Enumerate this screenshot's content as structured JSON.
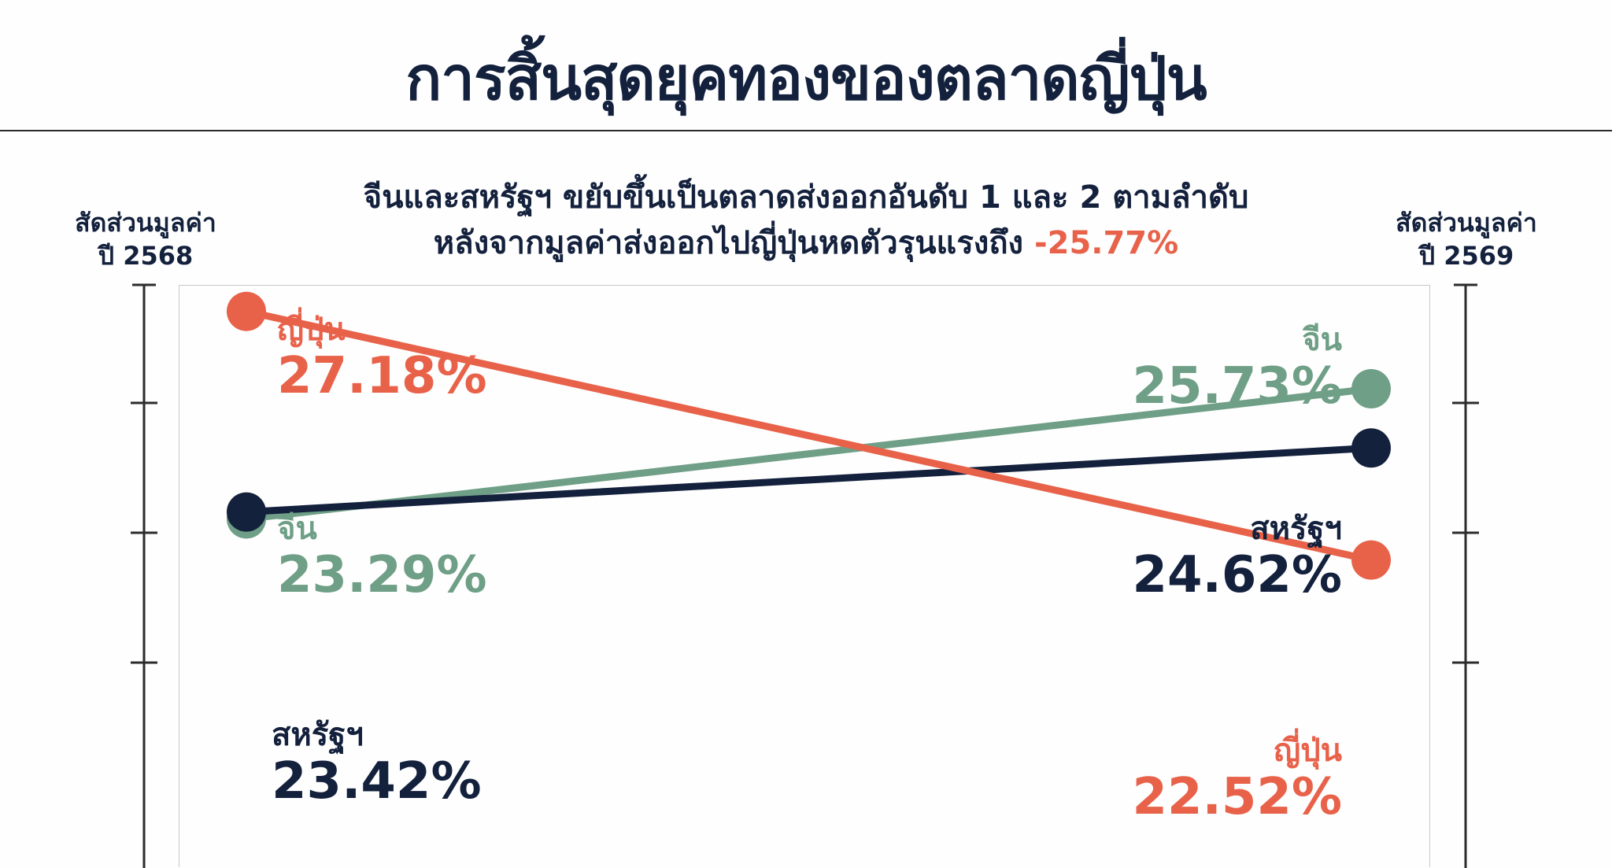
{
  "title": "การสิ้นสุดยุคทองของตลาดญี่ปุ่น",
  "subtitle": {
    "line1": "จีนและสหรัฐฯ ขยับขึ้นเป็นตลาดส่งออกอันดับ 1 และ 2 ตามลำดับ",
    "line2_prefix": "หลังจากมูลค่าส่งออกไปญี่ปุ่นหดตัวรุนแรงถึง ",
    "line2_highlight": "-25.77%"
  },
  "axis_left": {
    "line1": "สัดส่วนมูลค่า",
    "line2": "ปี 2568"
  },
  "axis_right": {
    "line1": "สัดส่วนมูลค่า",
    "line2": "ปี 2569"
  },
  "colors": {
    "japan": "#e8624a",
    "china": "#6f9f86",
    "usa": "#14213d",
    "axis": "#2b2b2b"
  },
  "chart_data": {
    "type": "line",
    "categories": [
      "ปี 2568",
      "ปี 2569"
    ],
    "series": [
      {
        "key": "japan",
        "name": "ญี่ปุ่น",
        "values": [
          27.18,
          22.52
        ],
        "labels": [
          "27.18%",
          "22.52%"
        ]
      },
      {
        "key": "china",
        "name": "จีน",
        "values": [
          23.29,
          25.73
        ],
        "labels": [
          "23.29%",
          "25.73%"
        ]
      },
      {
        "key": "usa",
        "name": "สหรัฐฯ",
        "values": [
          23.42,
          24.62
        ],
        "labels": [
          "23.42%",
          "24.62%"
        ]
      }
    ]
  }
}
